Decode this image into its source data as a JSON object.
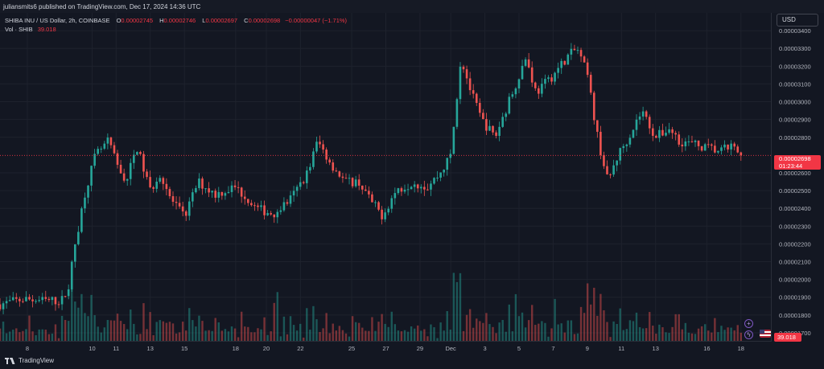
{
  "header": {
    "published_by": "juliansmits6 published on TradingView.com, Dec 17, 2024 14:36 UTC"
  },
  "legend": {
    "symbol": "SHIBA INU / US Dollar, 2h, COINBASE",
    "o_label": "O",
    "o_value": "0.00002745",
    "h_label": "H",
    "h_value": "0.00002746",
    "l_label": "L",
    "l_value": "0.00002697",
    "c_label": "C",
    "c_value": "0.00002698",
    "change": "−0.00000047 (−1.71%)",
    "vol_label": "Vol · SHIB",
    "vol_value": "39.018"
  },
  "currency_button": "USD",
  "last_price": {
    "price": "0.00002698",
    "countdown": "01:23:44"
  },
  "volume_tag": "39.018",
  "footer": {
    "brand": "TradingView"
  },
  "colors": {
    "up": "#26a69a",
    "down": "#ef5350",
    "background": "#131722",
    "grid": "#1e222d",
    "last_price": "#f23645"
  },
  "chart_data": {
    "type": "candlestick",
    "title": "SHIBA INU / US Dollar, 2h, COINBASE",
    "y_ticks": [
      "0.00003400",
      "0.00003300",
      "0.00003200",
      "0.00003100",
      "0.00003000",
      "0.00002900",
      "0.00002800",
      "0.00002600",
      "0.00002500",
      "0.00002400",
      "0.00002300",
      "0.00002200",
      "0.00002100",
      "0.00002000",
      "0.00001900",
      "0.00001800",
      "0.00001700"
    ],
    "ylim": [
      1.65e-05,
      3.5e-05
    ],
    "x_ticks": [
      {
        "label": "8",
        "t": 0.8
      },
      {
        "label": "10",
        "t": 2.7
      },
      {
        "label": "11",
        "t": 3.4
      },
      {
        "label": "13",
        "t": 4.4
      },
      {
        "label": "15",
        "t": 5.4
      },
      {
        "label": "18",
        "t": 6.9
      },
      {
        "label": "20",
        "t": 7.8
      },
      {
        "label": "22",
        "t": 8.8
      },
      {
        "label": "25",
        "t": 10.3
      },
      {
        "label": "27",
        "t": 11.3
      },
      {
        "label": "29",
        "t": 12.3
      },
      {
        "label": "Dec",
        "t": 13.2
      },
      {
        "label": "3",
        "t": 14.2
      },
      {
        "label": "5",
        "t": 15.2
      },
      {
        "label": "7",
        "t": 16.2
      },
      {
        "label": "9",
        "t": 17.2
      },
      {
        "label": "11",
        "t": 18.2
      },
      {
        "label": "13",
        "t": 19.2
      },
      {
        "label": "16",
        "t": 20.7
      },
      {
        "label": "18",
        "t": 21.7
      }
    ],
    "xlim": [
      0,
      22.6
    ],
    "anchors": [
      [
        0,
        1.86e-05
      ],
      [
        0.7,
        1.89e-05
      ],
      [
        1.3,
        1.88e-05
      ],
      [
        1.8,
        1.88e-05
      ],
      [
        2.0,
        1.95e-05
      ],
      [
        2.2,
        2.2e-05
      ],
      [
        2.5,
        2.5e-05
      ],
      [
        2.8,
        2.7e-05
      ],
      [
        3.2,
        2.78e-05
      ],
      [
        3.4,
        2.65e-05
      ],
      [
        3.7,
        2.55e-05
      ],
      [
        4.0,
        2.75e-05
      ],
      [
        4.4,
        2.5e-05
      ],
      [
        4.7,
        2.6e-05
      ],
      [
        5.0,
        2.45e-05
      ],
      [
        5.4,
        2.35e-05
      ],
      [
        5.8,
        2.55e-05
      ],
      [
        6.3,
        2.48e-05
      ],
      [
        6.9,
        2.52e-05
      ],
      [
        7.5,
        2.4e-05
      ],
      [
        8.0,
        2.37e-05
      ],
      [
        8.5,
        2.45e-05
      ],
      [
        9.0,
        2.6e-05
      ],
      [
        9.3,
        2.78e-05
      ],
      [
        9.7,
        2.65e-05
      ],
      [
        10.1,
        2.55e-05
      ],
      [
        10.5,
        2.55e-05
      ],
      [
        10.9,
        2.43e-05
      ],
      [
        11.2,
        2.36e-05
      ],
      [
        11.6,
        2.5e-05
      ],
      [
        12.1,
        2.55e-05
      ],
      [
        12.5,
        2.52e-05
      ],
      [
        12.9,
        2.6e-05
      ],
      [
        13.2,
        2.7e-05
      ],
      [
        13.5,
        3.25e-05
      ],
      [
        13.8,
        3.05e-05
      ],
      [
        14.1,
        2.9e-05
      ],
      [
        14.5,
        2.8e-05
      ],
      [
        15.0,
        3.05e-05
      ],
      [
        15.4,
        3.25e-05
      ],
      [
        15.7,
        3.05e-05
      ],
      [
        16.2,
        3.15e-05
      ],
      [
        16.6,
        3.25e-05
      ],
      [
        16.9,
        3.3e-05
      ],
      [
        17.2,
        3.15e-05
      ],
      [
        17.5,
        2.8e-05
      ],
      [
        17.8,
        2.55e-05
      ],
      [
        18.1,
        2.7e-05
      ],
      [
        18.4,
        2.8e-05
      ],
      [
        18.8,
        2.95e-05
      ],
      [
        19.2,
        2.8e-05
      ],
      [
        19.6,
        2.85e-05
      ],
      [
        19.9,
        2.78e-05
      ],
      [
        20.3,
        2.76e-05
      ],
      [
        20.7,
        2.74e-05
      ],
      [
        21.1,
        2.72e-05
      ],
      [
        21.4,
        2.75e-05
      ],
      [
        21.7,
        2.698e-05
      ]
    ],
    "volume_scale_max": 39.018
  }
}
